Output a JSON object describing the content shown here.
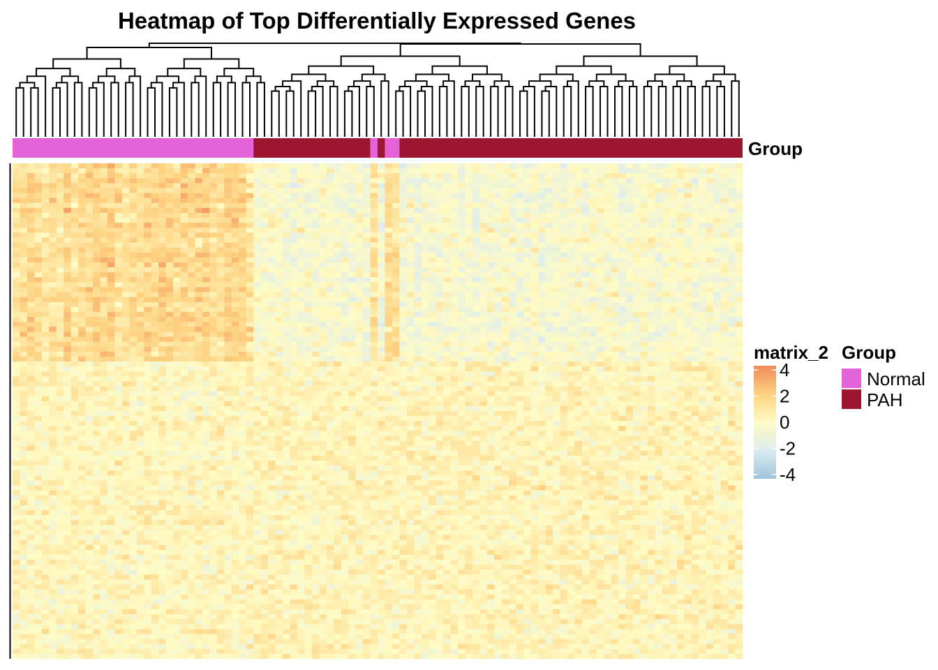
{
  "chart_data": {
    "type": "heatmap",
    "title": "Heatmap of Top Differentially Expressed Genes",
    "annotation": {
      "name": "Group",
      "segments": [
        {
          "group": "Normal",
          "start_col": 0,
          "end_col": 32
        },
        {
          "group": "PAH",
          "start_col": 33,
          "end_col": 48
        },
        {
          "group": "Normal",
          "start_col": 49,
          "end_col": 49
        },
        {
          "group": "PAH",
          "start_col": 50,
          "end_col": 50
        },
        {
          "group": "Normal",
          "start_col": 51,
          "end_col": 52
        },
        {
          "group": "PAH",
          "start_col": 53,
          "end_col": 99
        }
      ]
    },
    "legend": {
      "matrix_title": "matrix_2",
      "color_scale": {
        "breaks": [
          4,
          2,
          0,
          -2,
          -4
        ],
        "labels": [
          "4",
          "2",
          "0",
          "-2",
          "-4"
        ],
        "colors": [
          "#f08a5a",
          "#fdd180",
          "#fffbc4",
          "#dcecef",
          "#9ec4dc"
        ]
      },
      "group_title": "Group",
      "groups": [
        {
          "name": "Normal",
          "color": "#e563d8"
        },
        {
          "name": "PAH",
          "color": "#9c162f"
        }
      ]
    },
    "n_columns": 100,
    "n_rows": 100,
    "column_dendrogram": true,
    "row_dendrogram": false,
    "value_range": [
      -4,
      4
    ]
  }
}
